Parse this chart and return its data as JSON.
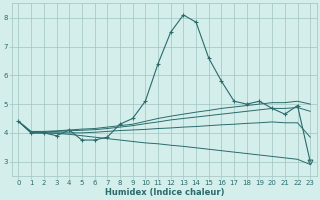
{
  "title": "",
  "xlabel": "Humidex (Indice chaleur)",
  "x_values": [
    0,
    1,
    2,
    3,
    4,
    5,
    6,
    7,
    8,
    9,
    10,
    11,
    12,
    13,
    14,
    15,
    16,
    17,
    18,
    19,
    20,
    21,
    22,
    23
  ],
  "line1_x": [
    0,
    1,
    2,
    3,
    4,
    5,
    6,
    7,
    8,
    9,
    10,
    11,
    12,
    13,
    14,
    15,
    16,
    17,
    18,
    19,
    20,
    21,
    22,
    23
  ],
  "line1_y": [
    4.4,
    4.0,
    4.0,
    3.9,
    4.1,
    3.75,
    3.75,
    3.85,
    4.3,
    4.5,
    5.1,
    6.4,
    7.5,
    8.1,
    7.85,
    6.6,
    5.8,
    5.1,
    5.0,
    5.1,
    4.85,
    4.65,
    4.95,
    3.0
  ],
  "line1_markers": [
    "+",
    "+",
    "+",
    "+",
    "+",
    "+",
    "+",
    "+",
    "+",
    "+",
    "+",
    "+",
    "+",
    "+",
    "+",
    "+",
    "+",
    "+",
    "+",
    "+",
    "+",
    "+",
    "+",
    "v"
  ],
  "line2_y": [
    4.4,
    4.05,
    4.05,
    4.07,
    4.1,
    4.13,
    4.15,
    4.2,
    4.25,
    4.3,
    4.4,
    4.5,
    4.58,
    4.65,
    4.72,
    4.78,
    4.85,
    4.9,
    4.95,
    5.0,
    5.05,
    5.05,
    5.1,
    5.0
  ],
  "line3_y": [
    4.4,
    4.03,
    4.03,
    4.05,
    4.07,
    4.09,
    4.11,
    4.15,
    4.2,
    4.25,
    4.32,
    4.38,
    4.45,
    4.5,
    4.55,
    4.6,
    4.65,
    4.7,
    4.75,
    4.8,
    4.85,
    4.85,
    4.88,
    4.75
  ],
  "line4_y": [
    4.4,
    4.0,
    4.0,
    4.0,
    4.0,
    4.0,
    4.02,
    4.05,
    4.08,
    4.1,
    4.12,
    4.15,
    4.17,
    4.2,
    4.22,
    4.25,
    4.28,
    4.3,
    4.33,
    4.35,
    4.38,
    4.35,
    4.35,
    3.85
  ],
  "line5_y": [
    4.4,
    4.0,
    4.0,
    3.98,
    3.95,
    3.9,
    3.85,
    3.8,
    3.75,
    3.7,
    3.65,
    3.62,
    3.57,
    3.53,
    3.48,
    3.43,
    3.38,
    3.33,
    3.28,
    3.23,
    3.18,
    3.13,
    3.08,
    2.9
  ],
  "color": "#2a6b6b",
  "bg_color": "#d4eeec",
  "grid_color": "#a0c4c0",
  "ylim": [
    2.5,
    8.5
  ],
  "xlim": [
    -0.5,
    23.5
  ],
  "yticks": [
    3,
    4,
    5,
    6,
    7,
    8
  ],
  "xticks": [
    0,
    1,
    2,
    3,
    4,
    5,
    6,
    7,
    8,
    9,
    10,
    11,
    12,
    13,
    14,
    15,
    16,
    17,
    18,
    19,
    20,
    21,
    22,
    23
  ],
  "xlabel_fontsize": 6.0,
  "tick_fontsize": 5.0
}
